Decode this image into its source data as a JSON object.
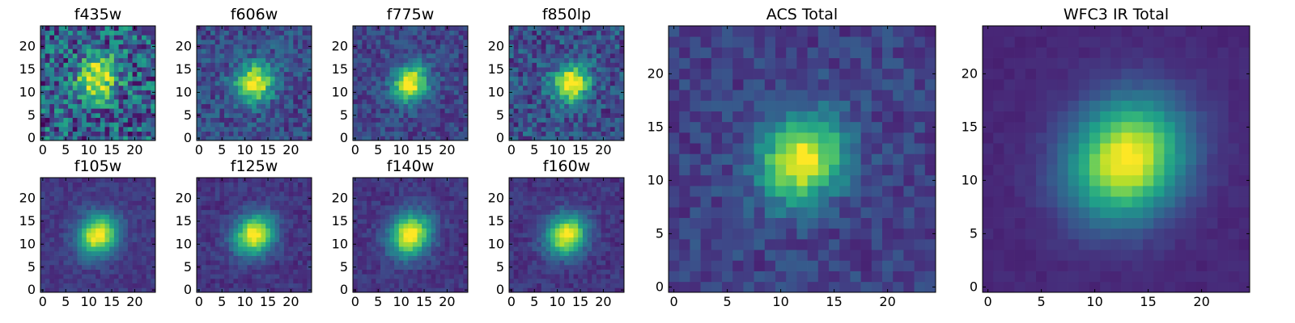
{
  "chart_data": [
    {
      "type": "heatmap",
      "title": "f435w",
      "xlabel": "",
      "ylabel": "",
      "xlim": [
        -0.5,
        24.5
      ],
      "ylim": [
        -0.5,
        24.5
      ],
      "xticks": [
        "0",
        "5",
        "10",
        "15",
        "20"
      ],
      "yticks": [
        "0",
        "5",
        "10",
        "15",
        "20"
      ],
      "peak": [
        12,
        13
      ],
      "spread": [
        2.8,
        3.2
      ],
      "noise": 0.55,
      "floor": 0.55,
      "colormap": "viridis",
      "grid": false
    },
    {
      "type": "heatmap",
      "title": "f606w",
      "xlabel": "",
      "ylabel": "",
      "xlim": [
        -0.5,
        24.5
      ],
      "ylim": [
        -0.5,
        24.5
      ],
      "xticks": [
        "0",
        "5",
        "10",
        "15",
        "20"
      ],
      "yticks": [
        "0",
        "5",
        "10",
        "15",
        "20"
      ],
      "peak": [
        12,
        12
      ],
      "spread": [
        2.8,
        3.0
      ],
      "noise": 0.35,
      "floor": 0.42,
      "colormap": "viridis",
      "grid": false
    },
    {
      "type": "heatmap",
      "title": "f775w",
      "xlabel": "",
      "ylabel": "",
      "xlim": [
        -0.5,
        24.5
      ],
      "ylim": [
        -0.5,
        24.5
      ],
      "xticks": [
        "0",
        "5",
        "10",
        "15",
        "20"
      ],
      "yticks": [
        "0",
        "5",
        "10",
        "15",
        "20"
      ],
      "peak": [
        12,
        12
      ],
      "spread": [
        2.5,
        2.8
      ],
      "noise": 0.32,
      "floor": 0.38,
      "colormap": "viridis",
      "grid": false
    },
    {
      "type": "heatmap",
      "title": "f850lp",
      "xlabel": "",
      "ylabel": "",
      "xlim": [
        -0.5,
        24.5
      ],
      "ylim": [
        -0.5,
        24.5
      ],
      "xticks": [
        "0",
        "5",
        "10",
        "15",
        "20"
      ],
      "yticks": [
        "0",
        "5",
        "10",
        "15",
        "20"
      ],
      "peak": [
        13,
        12
      ],
      "spread": [
        2.6,
        2.9
      ],
      "noise": 0.4,
      "floor": 0.45,
      "colormap": "viridis",
      "grid": false
    },
    {
      "type": "heatmap",
      "title": "f105w",
      "xlabel": "",
      "ylabel": "",
      "xlim": [
        -0.5,
        24.5
      ],
      "ylim": [
        -0.5,
        24.5
      ],
      "xticks": [
        "0",
        "5",
        "10",
        "15",
        "20"
      ],
      "yticks": [
        "0",
        "5",
        "10",
        "15",
        "20"
      ],
      "peak": [
        12,
        12
      ],
      "spread": [
        2.9,
        3.1
      ],
      "noise": 0.22,
      "floor": 0.3,
      "colormap": "viridis",
      "grid": false
    },
    {
      "type": "heatmap",
      "title": "f125w",
      "xlabel": "",
      "ylabel": "",
      "xlim": [
        -0.5,
        24.5
      ],
      "ylim": [
        -0.5,
        24.5
      ],
      "xticks": [
        "0",
        "5",
        "10",
        "15",
        "20"
      ],
      "yticks": [
        "0",
        "5",
        "10",
        "15",
        "20"
      ],
      "peak": [
        12,
        12
      ],
      "spread": [
        2.9,
        3.1
      ],
      "noise": 0.25,
      "floor": 0.28,
      "colormap": "viridis",
      "grid": false
    },
    {
      "type": "heatmap",
      "title": "f140w",
      "xlabel": "",
      "ylabel": "",
      "xlim": [
        -0.5,
        24.5
      ],
      "ylim": [
        -0.5,
        24.5
      ],
      "xticks": [
        "0",
        "5",
        "10",
        "15",
        "20"
      ],
      "yticks": [
        "0",
        "5",
        "10",
        "15",
        "20"
      ],
      "peak": [
        12,
        12
      ],
      "spread": [
        3.0,
        3.3
      ],
      "noise": 0.25,
      "floor": 0.28,
      "colormap": "viridis",
      "grid": false
    },
    {
      "type": "heatmap",
      "title": "f160w",
      "xlabel": "",
      "ylabel": "",
      "xlim": [
        -0.5,
        24.5
      ],
      "ylim": [
        -0.5,
        24.5
      ],
      "xticks": [
        "0",
        "5",
        "10",
        "15",
        "20"
      ],
      "yticks": [
        "0",
        "5",
        "10",
        "15",
        "20"
      ],
      "peak": [
        12,
        12
      ],
      "spread": [
        2.9,
        3.1
      ],
      "noise": 0.25,
      "floor": 0.28,
      "colormap": "viridis",
      "grid": false
    },
    {
      "type": "heatmap",
      "title": "ACS Total",
      "xlabel": "",
      "ylabel": "",
      "xlim": [
        -0.5,
        24.5
      ],
      "ylim": [
        -0.5,
        24.5
      ],
      "xticks": [
        "0",
        "5",
        "10",
        "15",
        "20"
      ],
      "yticks": [
        "0",
        "5",
        "10",
        "15",
        "20"
      ],
      "peak": [
        12,
        12
      ],
      "spread": [
        2.6,
        2.9
      ],
      "noise": 0.28,
      "floor": 0.35,
      "colormap": "viridis",
      "grid": false
    },
    {
      "type": "heatmap",
      "title": "WFC3 IR Total",
      "xlabel": "",
      "ylabel": "",
      "xlim": [
        -0.5,
        24.5
      ],
      "ylim": [
        -0.5,
        24.5
      ],
      "xticks": [
        "0",
        "5",
        "10",
        "15",
        "20"
      ],
      "yticks": [
        "0",
        "5",
        "10",
        "15",
        "20"
      ],
      "peak": [
        13,
        12
      ],
      "spread": [
        3.6,
        3.9
      ],
      "noise": 0.12,
      "floor": 0.2,
      "colormap": "viridis",
      "grid": false
    }
  ]
}
